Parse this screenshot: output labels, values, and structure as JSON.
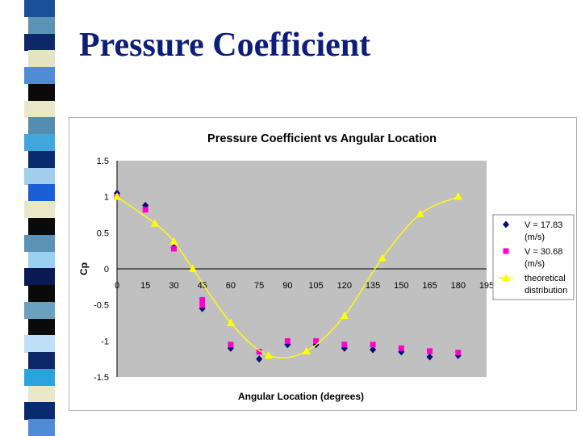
{
  "slide": {
    "title": "Pressure Coefficient",
    "stripe_colors": [
      "#1a4f9a",
      "#5b93b6",
      "#0c2868",
      "#e4e4c4",
      "#4f8bd6",
      "#0a0a0a",
      "#e8e8c8",
      "#558cb0",
      "#3fa7dc",
      "#0a2a6e",
      "#a2ceee",
      "#1a5fd6",
      "#e8e8c8",
      "#0a0a0a",
      "#5b93b6",
      "#9ad0f0",
      "#0a1a55",
      "#0a0a0a",
      "#6aa0c0",
      "#0a0a0a",
      "#bde0f6",
      "#0c2868",
      "#2aa4dc",
      "#e8e8c8",
      "#0a2a6e",
      "#4f8bd6"
    ]
  },
  "chart_data": {
    "type": "scatter",
    "title": "Pressure Coefficient vs Angular Location",
    "xlabel": "Angular Location (degrees)",
    "ylabel": "Cp",
    "xlim": [
      0,
      195
    ],
    "ylim": [
      -1.5,
      1.5
    ],
    "xticks": [
      "0",
      "15",
      "30",
      "45",
      "60",
      "75",
      "90",
      "105",
      "120",
      "135",
      "150",
      "165",
      "180",
      "195"
    ],
    "yticks": [
      "1.5",
      "1",
      "0.5",
      "0",
      "-0.5",
      "-1",
      "-1.5"
    ],
    "grid": false,
    "legend_position": "right",
    "plot_bg": "#c0c0c0",
    "series": [
      {
        "name": "V = 17.83 (m/s)",
        "name_lines": [
          "V = 17.83",
          "(m/s)"
        ],
        "marker": "diamond",
        "color": "#0a0a7a",
        "x": [
          0,
          15,
          30,
          45,
          60,
          75,
          90,
          105,
          120,
          135,
          150,
          165,
          180
        ],
        "y": [
          1.05,
          0.88,
          0.3,
          -0.55,
          -1.1,
          -1.25,
          -1.05,
          -1.05,
          -1.1,
          -1.12,
          -1.15,
          -1.22,
          -1.2
        ]
      },
      {
        "name": "V = 30.68 (m/s)",
        "name_lines": [
          "V = 30.68",
          "(m/s)"
        ],
        "marker": "square",
        "color": "#ff00cc",
        "x": [
          0,
          15,
          30,
          45,
          45,
          60,
          75,
          90,
          105,
          120,
          135,
          150,
          165,
          180
        ],
        "y": [
          1.0,
          0.82,
          0.28,
          -0.43,
          -0.5,
          -1.05,
          -1.15,
          -1.0,
          -1.0,
          -1.05,
          -1.05,
          -1.1,
          -1.14,
          -1.16
        ]
      },
      {
        "name": "theoretical distribution",
        "name_lines": [
          "theoretical",
          "distribution"
        ],
        "marker": "triangle",
        "color": "#ffff00",
        "line": true,
        "x": [
          0,
          20,
          30,
          40,
          60,
          80,
          100,
          120,
          140,
          160,
          180
        ],
        "y": [
          1.0,
          0.63,
          0.38,
          0.0,
          -0.75,
          -1.2,
          -1.14,
          -0.65,
          0.15,
          0.76,
          1.0
        ]
      }
    ]
  }
}
